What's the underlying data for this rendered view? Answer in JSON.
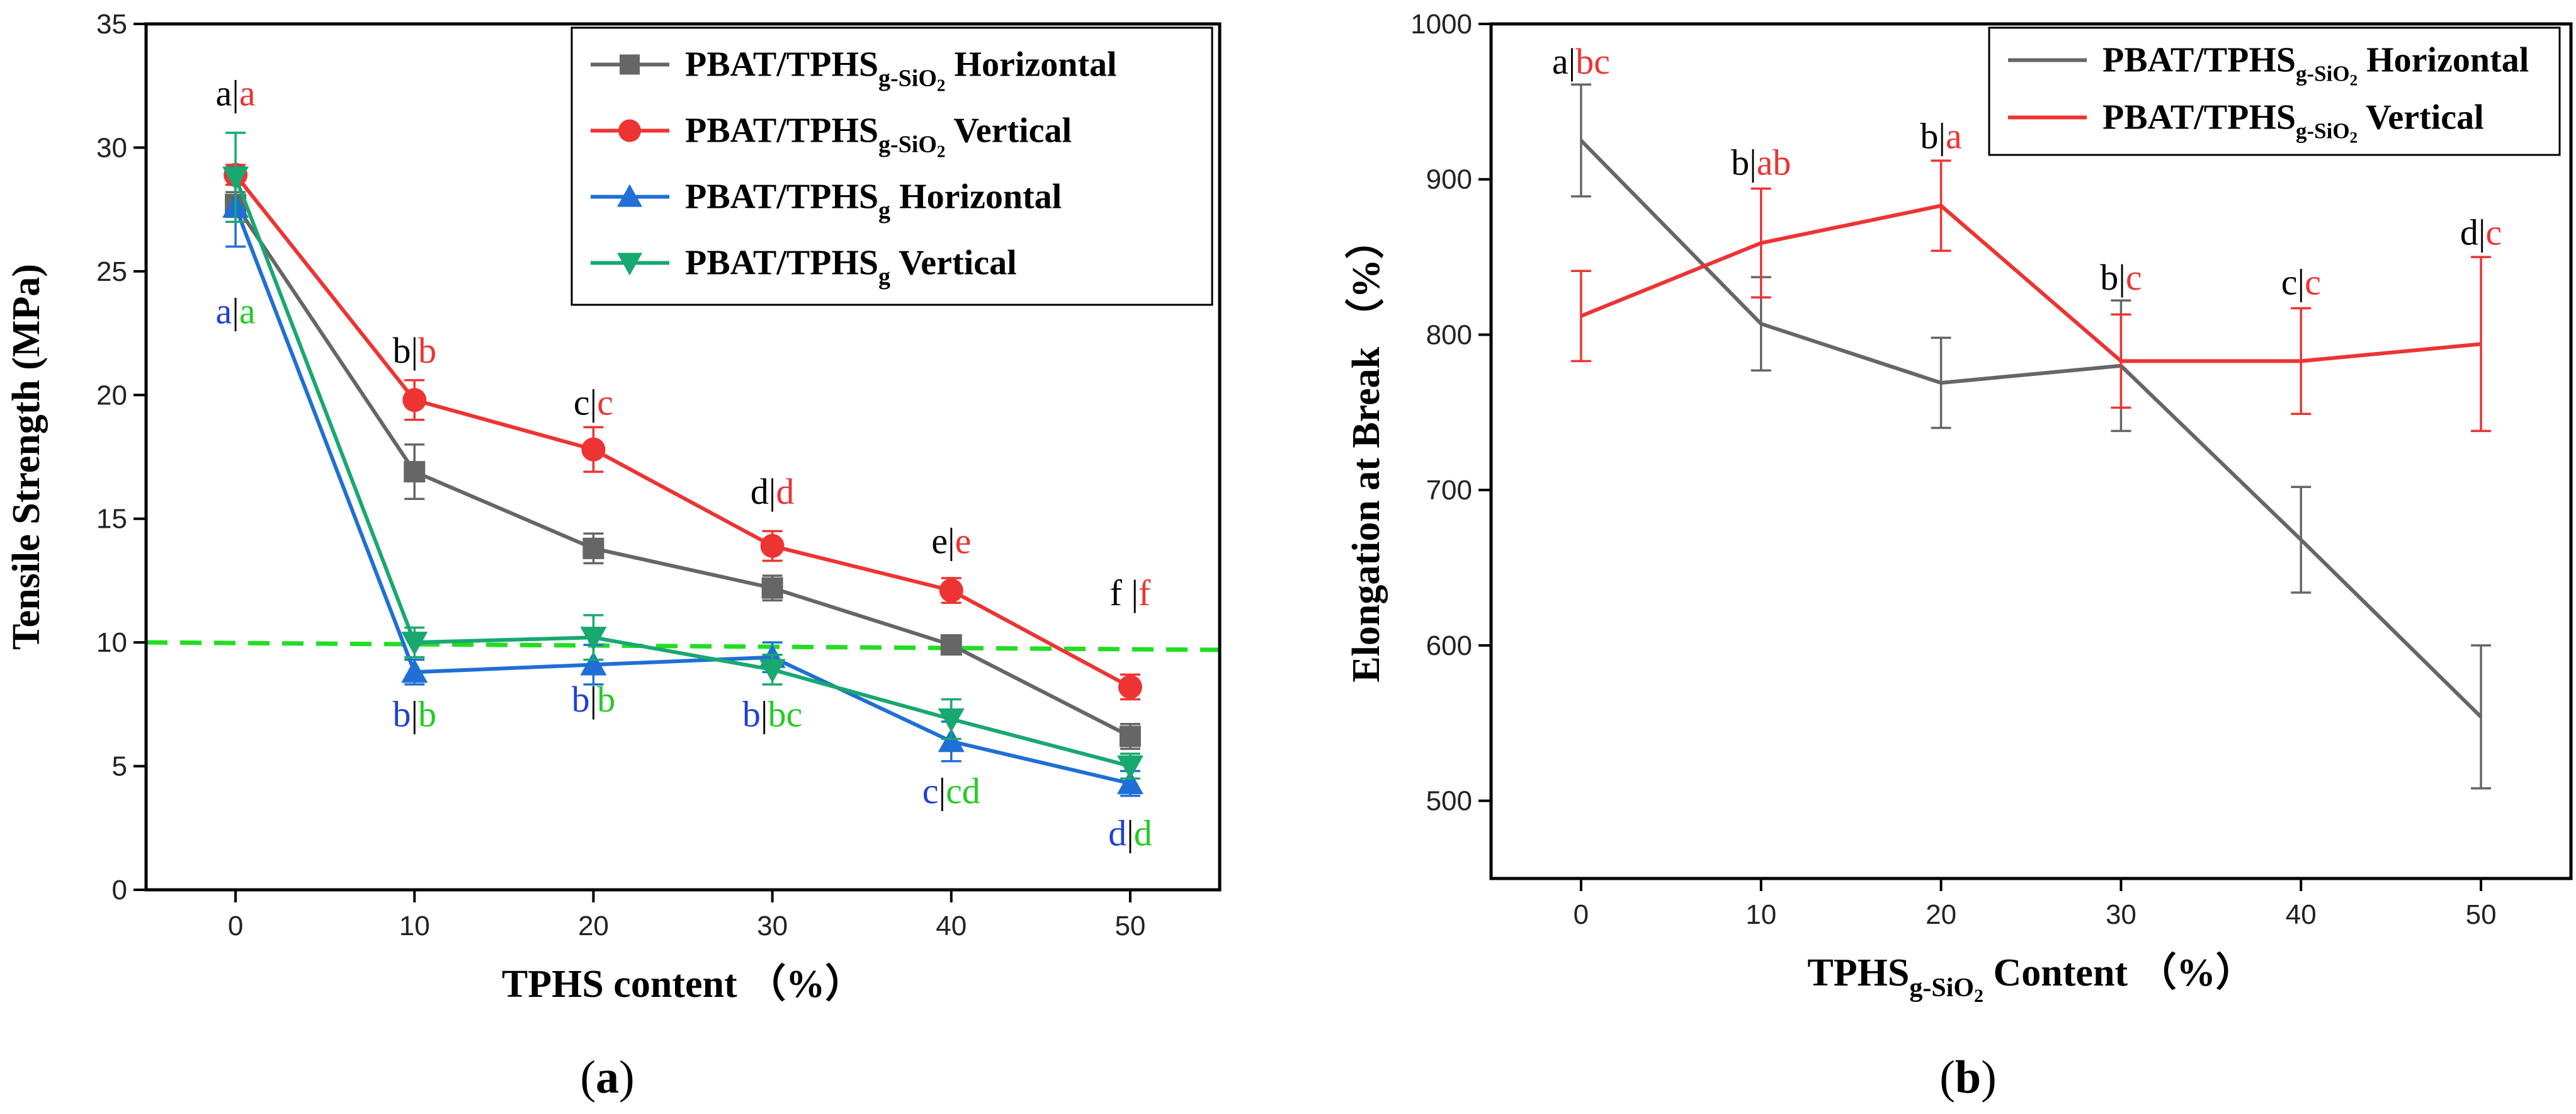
{
  "chart_data": [
    {
      "type": "line",
      "panel_label": "(a)",
      "xlabel": "TPHS content （%）",
      "ylabel": "Tensile Strength (MPa)",
      "xlim": [
        -5,
        55
      ],
      "ylim": [
        0,
        35
      ],
      "x_ticks": [
        0,
        10,
        20,
        30,
        40,
        50
      ],
      "y_ticks": [
        0,
        5,
        10,
        15,
        20,
        25,
        30,
        35
      ],
      "x": [
        0,
        10,
        20,
        30,
        40,
        50
      ],
      "reference_line": {
        "y_start": 10.0,
        "y_end": 9.7,
        "color": "#22dd22",
        "style": "dashed"
      },
      "series": [
        {
          "name": "PBAT/TPHS g-SiO2 Horizontal",
          "legend": {
            "base": "PBAT/TPHS",
            "sub": "g-SiO",
            "subsub": "2",
            "suffix": " Horizontal"
          },
          "color": "#666666",
          "marker": "square",
          "values": [
            27.7,
            16.9,
            13.8,
            12.2,
            9.9,
            6.2
          ],
          "errors": [
            0.5,
            1.1,
            0.6,
            0.5,
            0.3,
            0.5
          ]
        },
        {
          "name": "PBAT/TPHS g-SiO2 Vertical",
          "legend": {
            "base": "PBAT/TPHS",
            "sub": "g-SiO",
            "subsub": "2",
            "suffix": " Vertical"
          },
          "color": "#ee3333",
          "marker": "circle",
          "values": [
            28.9,
            19.8,
            17.8,
            13.9,
            12.1,
            8.2
          ],
          "errors": [
            0.4,
            0.8,
            0.9,
            0.6,
            0.5,
            0.5
          ]
        },
        {
          "name": "PBAT/TPHS g Horizontal",
          "legend": {
            "base": "PBAT/TPHS",
            "sub": "g",
            "subsub": "",
            "suffix": " Horizontal"
          },
          "color": "#1f6fd6",
          "marker": "triangle-up",
          "values": [
            27.6,
            8.8,
            9.1,
            9.4,
            6.0,
            4.3
          ],
          "errors": [
            1.6,
            0.5,
            0.8,
            0.6,
            0.8,
            0.5
          ]
        },
        {
          "name": "PBAT/TPHS g Vertical",
          "legend": {
            "base": "PBAT/TPHS",
            "sub": "g",
            "subsub": "",
            "suffix": " Vertical"
          },
          "color": "#18a870",
          "marker": "triangle-down",
          "values": [
            28.8,
            10.0,
            10.2,
            8.9,
            6.9,
            5.0
          ],
          "errors": [
            1.8,
            0.6,
            0.9,
            0.6,
            0.8,
            0.5
          ]
        }
      ],
      "annotations": [
        {
          "x": 0,
          "y": 31.7,
          "parts": [
            {
              "text": "a",
              "color": "#000000"
            },
            {
              "text": "|",
              "color": "#000000"
            },
            {
              "text": "a",
              "color": "#ee3333"
            }
          ]
        },
        {
          "x": 10,
          "y": 21.3,
          "parts": [
            {
              "text": "b",
              "color": "#000000"
            },
            {
              "text": "|",
              "color": "#000000"
            },
            {
              "text": "b",
              "color": "#ee3333"
            }
          ]
        },
        {
          "x": 20,
          "y": 19.2,
          "parts": [
            {
              "text": "c",
              "color": "#000000"
            },
            {
              "text": "|",
              "color": "#000000"
            },
            {
              "text": "c",
              "color": "#ee3333"
            }
          ]
        },
        {
          "x": 30,
          "y": 15.6,
          "parts": [
            {
              "text": "d",
              "color": "#000000"
            },
            {
              "text": "|",
              "color": "#000000"
            },
            {
              "text": "d",
              "color": "#ee3333"
            }
          ]
        },
        {
          "x": 40,
          "y": 13.6,
          "parts": [
            {
              "text": "e",
              "color": "#000000"
            },
            {
              "text": "|",
              "color": "#000000"
            },
            {
              "text": "e",
              "color": "#ee3333"
            }
          ]
        },
        {
          "x": 50,
          "y": 11.5,
          "parts": [
            {
              "text": "f ",
              "color": "#000000"
            },
            {
              "text": "|",
              "color": "#000000"
            },
            {
              "text": "f",
              "color": "#ee3333"
            }
          ]
        },
        {
          "x": 0,
          "y": 22.9,
          "parts": [
            {
              "text": "a",
              "color": "#1f3fd6"
            },
            {
              "text": "|",
              "color": "#000000"
            },
            {
              "text": "a",
              "color": "#22cc22"
            }
          ]
        },
        {
          "x": 10,
          "y": 6.6,
          "parts": [
            {
              "text": "b",
              "color": "#1f3fd6"
            },
            {
              "text": "|",
              "color": "#000000"
            },
            {
              "text": "b",
              "color": "#22cc22"
            }
          ]
        },
        {
          "x": 20,
          "y": 7.2,
          "parts": [
            {
              "text": "b",
              "color": "#1f3fd6"
            },
            {
              "text": "|",
              "color": "#000000"
            },
            {
              "text": "b",
              "color": "#22cc22"
            }
          ]
        },
        {
          "x": 30,
          "y": 6.6,
          "parts": [
            {
              "text": "b",
              "color": "#1f3fd6"
            },
            {
              "text": "|",
              "color": "#000000"
            },
            {
              "text": "bc",
              "color": "#22cc22"
            }
          ]
        },
        {
          "x": 40,
          "y": 3.5,
          "parts": [
            {
              "text": "c",
              "color": "#1f3fd6"
            },
            {
              "text": "|",
              "color": "#000000"
            },
            {
              "text": "cd",
              "color": "#22cc22"
            }
          ]
        },
        {
          "x": 50,
          "y": 1.8,
          "parts": [
            {
              "text": "d",
              "color": "#1f3fd6"
            },
            {
              "text": "|",
              "color": "#000000"
            },
            {
              "text": "d",
              "color": "#22cc22"
            }
          ]
        }
      ]
    },
    {
      "type": "line",
      "panel_label": "(b)",
      "xlabel": "TPHS g-SiO2 Content （%）",
      "xlabel_parts": {
        "base": "TPHS",
        "sub": "g-SiO",
        "subsub": "2",
        "suffix": " Content （%）"
      },
      "ylabel": "Elongation at Break （%）",
      "xlim": [
        -5,
        55
      ],
      "ylim": [
        450,
        1000
      ],
      "x_ticks": [
        0,
        10,
        20,
        30,
        40,
        50
      ],
      "y_ticks": [
        500,
        600,
        700,
        800,
        900,
        1000
      ],
      "x": [
        0,
        10,
        20,
        30,
        40,
        50
      ],
      "series": [
        {
          "name": "PBAT/TPHS g-SiO2 Horizontal",
          "legend": {
            "base": "PBAT/TPHS",
            "sub": "g-SiO",
            "subsub": "2",
            "suffix": " Horizontal"
          },
          "color": "#666666",
          "marker": "none",
          "values": [
            925,
            807,
            769,
            780,
            668,
            554
          ],
          "errors": [
            36,
            30,
            29,
            42,
            34,
            46
          ]
        },
        {
          "name": "PBAT/TPHS g-SiO2 Vertical",
          "legend": {
            "base": "PBAT/TPHS",
            "sub": "g-SiO",
            "subsub": "2",
            "suffix": " Vertical"
          },
          "color": "#ee3333",
          "marker": "none",
          "values": [
            812,
            859,
            883,
            783,
            783,
            794
          ],
          "errors": [
            29,
            35,
            29,
            30,
            34,
            56
          ]
        }
      ],
      "annotations": [
        {
          "x": 0,
          "y": 968,
          "parts": [
            {
              "text": "a",
              "color": "#000000"
            },
            {
              "text": "|",
              "color": "#000000"
            },
            {
              "text": "bc",
              "color": "#ee3333"
            }
          ]
        },
        {
          "x": 10,
          "y": 903,
          "parts": [
            {
              "text": "b",
              "color": "#000000"
            },
            {
              "text": "|",
              "color": "#000000"
            },
            {
              "text": "ab",
              "color": "#ee3333"
            }
          ]
        },
        {
          "x": 20,
          "y": 920,
          "parts": [
            {
              "text": "b",
              "color": "#000000"
            },
            {
              "text": "|",
              "color": "#000000"
            },
            {
              "text": "a",
              "color": "#ee3333"
            }
          ]
        },
        {
          "x": 30,
          "y": 829,
          "parts": [
            {
              "text": "b",
              "color": "#000000"
            },
            {
              "text": "|",
              "color": "#000000"
            },
            {
              "text": "c",
              "color": "#ee3333"
            }
          ]
        },
        {
          "x": 40,
          "y": 826,
          "parts": [
            {
              "text": "c",
              "color": "#000000"
            },
            {
              "text": "|",
              "color": "#000000"
            },
            {
              "text": "c",
              "color": "#ee3333"
            }
          ]
        },
        {
          "x": 50,
          "y": 858,
          "parts": [
            {
              "text": "d",
              "color": "#000000"
            },
            {
              "text": "|",
              "color": "#000000"
            },
            {
              "text": "c",
              "color": "#ee3333"
            }
          ]
        }
      ]
    }
  ]
}
